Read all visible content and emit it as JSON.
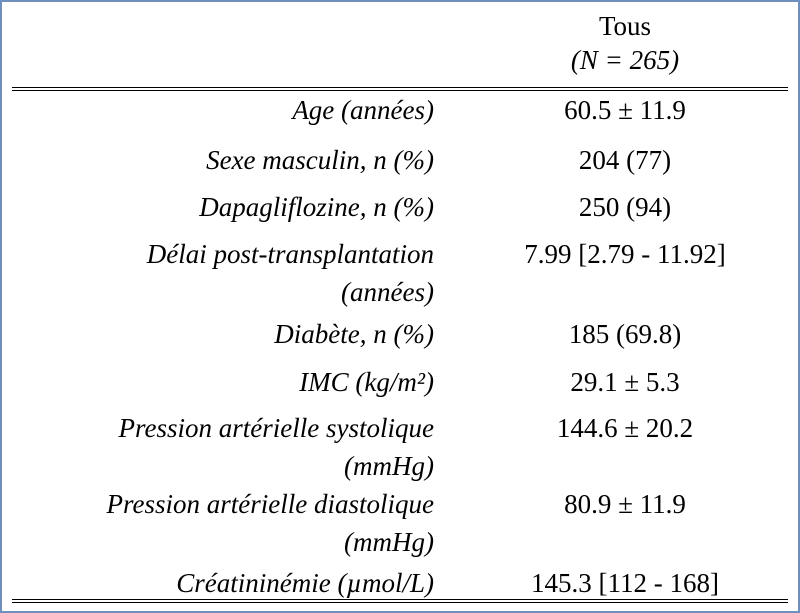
{
  "table": {
    "column_header": "Tous",
    "column_n": "(N = 265)",
    "rows": [
      {
        "label": "Age (années)",
        "value": "60.5 ± 11.9"
      },
      {
        "label": "Sexe masculin, n (%)",
        "value": "204 (77)"
      },
      {
        "label": "Dapagliflozine, n (%)",
        "value": "250 (94)"
      },
      {
        "label": "Délai post-transplantation",
        "label2": "(années)",
        "value": "7.99 [2.79 - 11.92]"
      },
      {
        "label": "Diabète, n (%)",
        "value": "185 (69.8)"
      },
      {
        "label": "IMC (kg/m²)",
        "value": "29.1 ± 5.3"
      },
      {
        "label": "Pression artérielle systolique",
        "label2": "(mmHg)",
        "value": "144.6 ± 20.2"
      },
      {
        "label": "Pression artérielle diastolique",
        "label2": "(mmHg)",
        "value": "80.9 ± 11.9"
      },
      {
        "label": "Créatininémie (µmol/L)",
        "value": "145.3 [112 - 168]"
      }
    ]
  }
}
